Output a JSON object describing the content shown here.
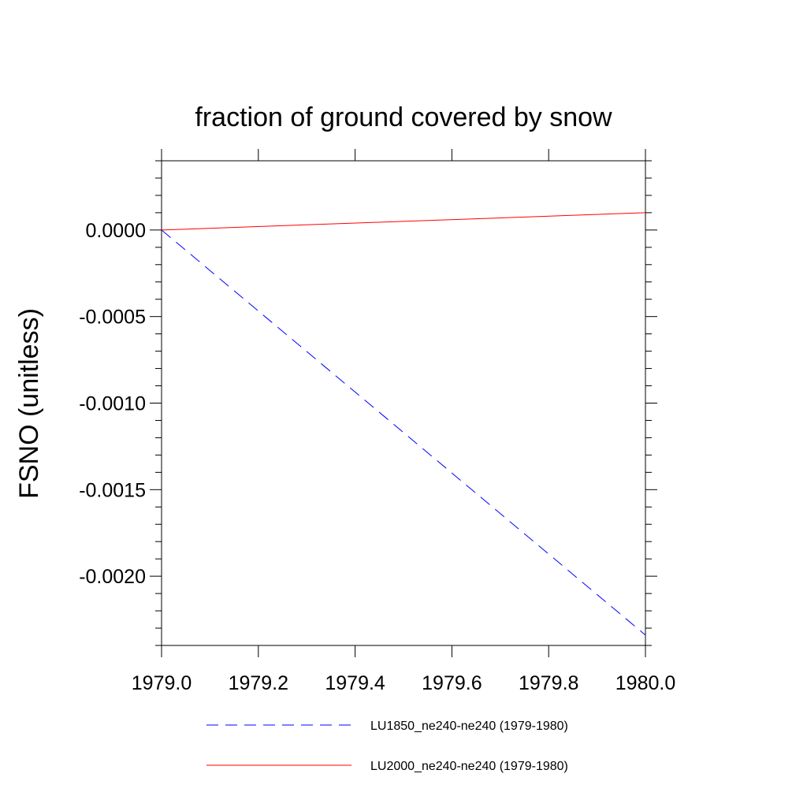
{
  "chart_data": {
    "type": "line",
    "title": "fraction of ground covered by snow",
    "xlabel": "",
    "ylabel": "FSNO  (unitless)",
    "xlim": [
      1979.0,
      1980.0
    ],
    "ylim": [
      -0.0024,
      0.0004
    ],
    "xticks": [
      1979.0,
      1979.2,
      1979.4,
      1979.6,
      1979.8,
      1980.0
    ],
    "xtick_labels": [
      "1979.0",
      "1979.2",
      "1979.4",
      "1979.6",
      "1979.8",
      "1980.0"
    ],
    "yticks": [
      0.0,
      -0.0005,
      -0.001,
      -0.0015,
      -0.002
    ],
    "ytick_labels": [
      "0.0000",
      "-0.0005",
      "-0.0010",
      "-0.0015",
      "-0.0020"
    ],
    "grid": false,
    "legend_position": "bottom",
    "series": [
      {
        "name": "LU1850_ne240-ne240 (1979-1980)",
        "color": "#0000ff",
        "style": "dashed",
        "x": [
          1979.0,
          1980.0
        ],
        "y": [
          0.0,
          -0.00234
        ]
      },
      {
        "name": "LU2000_ne240-ne240 (1979-1980)",
        "color": "#ff0000",
        "style": "solid",
        "x": [
          1979.0,
          1980.0
        ],
        "y": [
          0.0,
          0.0001
        ]
      }
    ]
  }
}
